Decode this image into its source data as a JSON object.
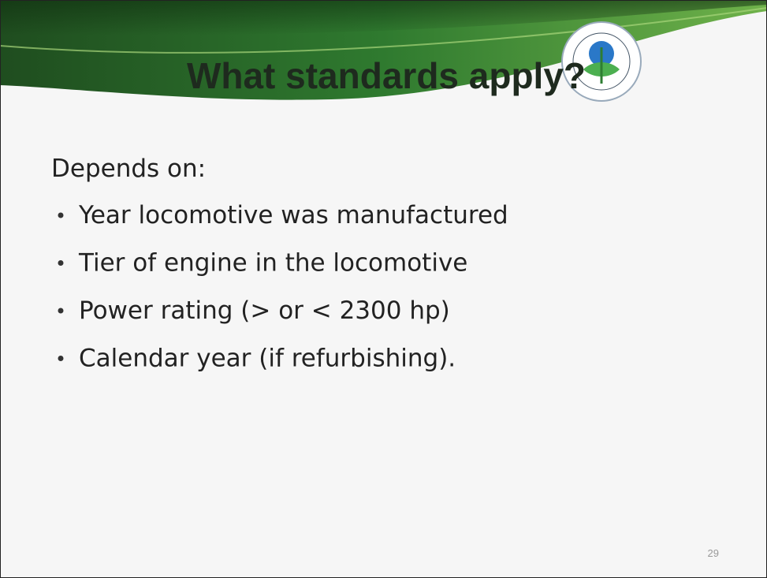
{
  "slide": {
    "title": "What standards apply?",
    "intro": "Depends on:",
    "bullets": [
      "Year locomotive was manufactured",
      "Tier of engine in the locomotive",
      "Power rating (> or < 2300 hp)",
      "Calendar year (if refurbishing)."
    ],
    "page_number": "29"
  }
}
